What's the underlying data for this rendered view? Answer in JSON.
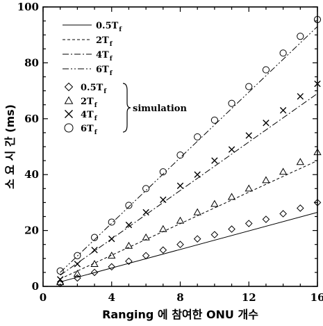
{
  "chart_data": {
    "type": "line",
    "xlabel": "Ranging 에 참여한 ONU 개수",
    "ylabel": "소 요 시 간 (ms)",
    "xlim": [
      0,
      16
    ],
    "ylim": [
      0,
      100
    ],
    "xticks": [
      0,
      4,
      8,
      12,
      16
    ],
    "yticks": [
      0,
      20,
      40,
      60,
      80,
      100
    ],
    "grid": false,
    "legend_position": "top-left",
    "legend_bracket_label": "simulation",
    "analytic_series": [
      {
        "name": "0.5T",
        "subscript": "f",
        "style": "solid",
        "x": [
          1,
          16
        ],
        "y": [
          1.6,
          26.5
        ]
      },
      {
        "name": "2T",
        "subscript": "f",
        "style": "dashed",
        "x": [
          1,
          16
        ],
        "y": [
          2.7,
          45.0
        ]
      },
      {
        "name": "4T",
        "subscript": "f",
        "style": "dashdot",
        "x": [
          1,
          16
        ],
        "y": [
          4.0,
          69.0
        ]
      },
      {
        "name": "6T",
        "subscript": "f",
        "style": "dashdotdot",
        "x": [
          1,
          16
        ],
        "y": [
          5.0,
          93.0
        ]
      }
    ],
    "simulation_series": [
      {
        "name": "0.5T",
        "subscript": "f",
        "marker": "diamond",
        "x": [
          1,
          2,
          3,
          4,
          5,
          6,
          7,
          8,
          9,
          10,
          11,
          12,
          13,
          14,
          15,
          16
        ],
        "y": [
          1.0,
          3.0,
          5.0,
          7.0,
          9.0,
          11.0,
          13.0,
          15.0,
          17.0,
          18.5,
          20.5,
          22.5,
          24.0,
          26.0,
          28.0,
          30.0
        ]
      },
      {
        "name": "2T",
        "subscript": "f",
        "marker": "triangle",
        "x": [
          1,
          2,
          3,
          4,
          5,
          6,
          7,
          8,
          9,
          10,
          11,
          12,
          13,
          14,
          15,
          16
        ],
        "y": [
          1.5,
          4.5,
          8.0,
          11.0,
          14.5,
          17.5,
          20.5,
          23.5,
          26.5,
          29.5,
          32.0,
          35.0,
          38.0,
          41.0,
          44.5,
          48.0
        ]
      },
      {
        "name": "4T",
        "subscript": "f",
        "marker": "cross",
        "x": [
          1,
          2,
          3,
          4,
          5,
          6,
          7,
          8,
          9,
          10,
          11,
          12,
          13,
          14,
          15,
          16
        ],
        "y": [
          2.5,
          8.0,
          13.0,
          17.0,
          22.0,
          26.5,
          31.0,
          36.0,
          40.0,
          45.0,
          49.0,
          54.0,
          58.5,
          63.0,
          68.0,
          72.5
        ]
      },
      {
        "name": "6T",
        "subscript": "f",
        "marker": "circle",
        "x": [
          1,
          2,
          3,
          4,
          5,
          6,
          7,
          8,
          9,
          10,
          11,
          12,
          13,
          14,
          15,
          16
        ],
        "y": [
          5.5,
          11.0,
          17.5,
          23.0,
          29.0,
          35.0,
          41.0,
          47.0,
          53.5,
          59.5,
          65.5,
          71.5,
          77.5,
          83.5,
          89.5,
          95.5
        ]
      }
    ]
  }
}
